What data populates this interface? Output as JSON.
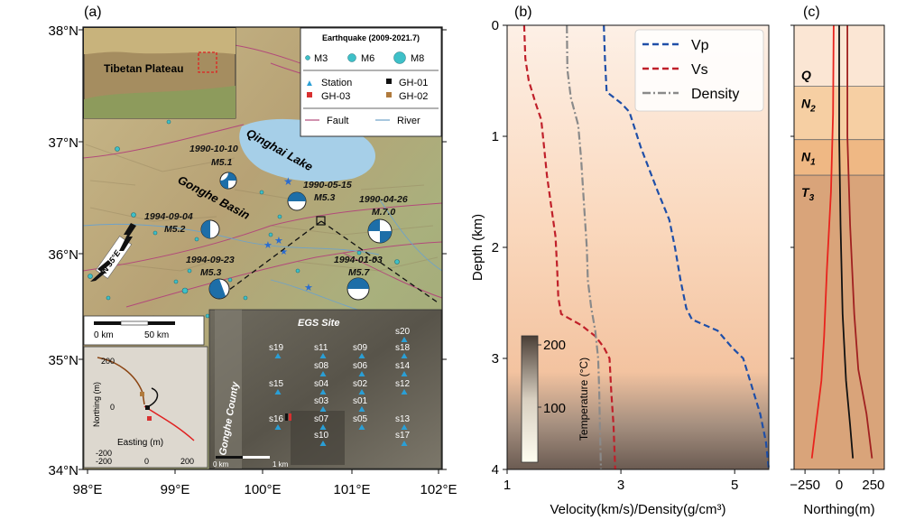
{
  "panel_a": {
    "label": "(a)",
    "lat_ticks": [
      "34°N",
      "35°N",
      "36°N",
      "37°N",
      "38°N"
    ],
    "lon_ticks": [
      "98°E",
      "99°E",
      "100°E",
      "101°E",
      "102°E"
    ],
    "inset_label": "Tibetan Plateau",
    "legend": {
      "title": "Earthquake (2009-2021.7)",
      "m3": "M3",
      "m6": "M6",
      "m8": "M8",
      "station": "Station",
      "gh01": "GH-01",
      "gh03": "GH-03",
      "gh02": "GH-02",
      "fault": "Fault",
      "river": "River"
    },
    "lake_label": "Qinghai Lake",
    "basin_label": "Gonghe Basin",
    "orientation_label": "N 35°E",
    "events": [
      {
        "date": "1990-10-10",
        "mag": "M5.1"
      },
      {
        "date": "1990-05-15",
        "mag": "M5.3"
      },
      {
        "date": "1990-04-26",
        "mag": "M.7.0"
      },
      {
        "date": "1994-09-04",
        "mag": "M5.2"
      },
      {
        "date": "1994-09-23",
        "mag": "M5.3"
      },
      {
        "date": "1994-01-03",
        "mag": "M5.7"
      }
    ],
    "scalebar": {
      "zero": "0 km",
      "end": "50 km"
    },
    "well_inset": {
      "ylabel": "Northing (m)",
      "xlabel": "Easting (m)",
      "yticks": [
        "200",
        "0",
        "-200"
      ],
      "xticks": [
        "-200",
        "0",
        "200"
      ]
    },
    "site": {
      "title": "EGS Site",
      "county": "Gonghe County",
      "scale_zero": "0 km",
      "scale_end": "1 km",
      "stations": [
        "s20",
        "s19",
        "s11",
        "s09",
        "s18",
        "s08",
        "s06",
        "s14",
        "s15",
        "s04",
        "s02",
        "s12",
        "s03",
        "s01",
        "s16",
        "s07",
        "s05",
        "s13",
        "s10",
        "s17"
      ]
    }
  },
  "panel_b_label": "(b)",
  "panel_c_label": "(c)",
  "colorbar": {
    "label": "Temperature (°C)",
    "ticks": [
      "200",
      "100"
    ]
  },
  "chart_data": [
    {
      "type": "line",
      "xlabel": "Velocity(km/s)/Density(g/cm³)",
      "ylabel": "Depth (km)",
      "xlim": [
        1,
        5.6
      ],
      "ylim": [
        0,
        4
      ],
      "y_inverted": true,
      "xticks": [
        1,
        3,
        5
      ],
      "yticks": [
        0,
        1,
        2,
        3,
        4
      ],
      "legend_position": "top-right",
      "series": [
        {
          "name": "Vp",
          "color": "#1f4fa8",
          "dash": "dashed",
          "points": [
            [
              2.7,
              0
            ],
            [
              2.72,
              0.3
            ],
            [
              2.75,
              0.6
            ],
            [
              3.0,
              0.7
            ],
            [
              3.15,
              0.78
            ],
            [
              3.35,
              1.1
            ],
            [
              3.5,
              1.3
            ],
            [
              3.65,
              1.5
            ],
            [
              3.85,
              1.75
            ],
            [
              3.95,
              2.0
            ],
            [
              4.05,
              2.3
            ],
            [
              4.15,
              2.55
            ],
            [
              4.25,
              2.65
            ],
            [
              4.7,
              2.75
            ],
            [
              4.95,
              2.9
            ],
            [
              5.15,
              3.0
            ],
            [
              5.3,
              3.25
            ],
            [
              5.45,
              3.5
            ],
            [
              5.55,
              3.75
            ],
            [
              5.6,
              4.0
            ]
          ]
        },
        {
          "name": "Vs",
          "color": "#c0202a",
          "dash": "dashed",
          "points": [
            [
              1.3,
              0
            ],
            [
              1.32,
              0.3
            ],
            [
              1.38,
              0.5
            ],
            [
              1.5,
              0.7
            ],
            [
              1.6,
              0.85
            ],
            [
              1.65,
              1.1
            ],
            [
              1.7,
              1.35
            ],
            [
              1.78,
              1.65
            ],
            [
              1.85,
              1.9
            ],
            [
              1.88,
              2.2
            ],
            [
              1.9,
              2.45
            ],
            [
              1.95,
              2.6
            ],
            [
              2.3,
              2.7
            ],
            [
              2.55,
              2.8
            ],
            [
              2.7,
              2.9
            ],
            [
              2.8,
              3.0
            ],
            [
              2.83,
              3.3
            ],
            [
              2.87,
              3.6
            ],
            [
              2.9,
              4.0
            ]
          ]
        },
        {
          "name": "Density",
          "color": "#8a8a8a",
          "dash": "dashdot",
          "points": [
            [
              2.05,
              0
            ],
            [
              2.06,
              0.4
            ],
            [
              2.12,
              0.65
            ],
            [
              2.25,
              0.9
            ],
            [
              2.3,
              1.2
            ],
            [
              2.35,
              1.6
            ],
            [
              2.4,
              2.0
            ],
            [
              2.42,
              2.3
            ],
            [
              2.48,
              2.55
            ],
            [
              2.55,
              2.75
            ],
            [
              2.6,
              3.0
            ],
            [
              2.62,
              3.3
            ],
            [
              2.63,
              3.6
            ],
            [
              2.65,
              4.0
            ]
          ]
        }
      ]
    },
    {
      "type": "line",
      "xlabel": "Northing(m)",
      "xlim": [
        -330,
        330
      ],
      "ylim": [
        0,
        4
      ],
      "y_inverted": true,
      "xticks": [
        -250,
        0,
        250
      ],
      "layers": [
        {
          "name": "Q",
          "top": 0,
          "bottom": 0.55,
          "color": "#fbe6d4"
        },
        {
          "name": "N2",
          "top": 0.55,
          "bottom": 1.03,
          "color": "#f6cfa3"
        },
        {
          "name": "N1",
          "top": 1.03,
          "bottom": 1.35,
          "color": "#efb884"
        },
        {
          "name": "T3",
          "top": 1.35,
          "bottom": 4.0,
          "color": "#d9a47a"
        }
      ],
      "series": [
        {
          "color": "#e8231d",
          "points": [
            [
              -40,
              0
            ],
            [
              -45,
              0.8
            ],
            [
              -60,
              1.5
            ],
            [
              -90,
              2.2
            ],
            [
              -110,
              2.8
            ],
            [
              -130,
              3.2
            ],
            [
              -170,
              3.6
            ],
            [
              -200,
              3.9
            ]
          ]
        },
        {
          "color": "#111111",
          "points": [
            [
              0,
              0
            ],
            [
              0,
              1.0
            ],
            [
              10,
              1.8
            ],
            [
              25,
              2.6
            ],
            [
              50,
              3.2
            ],
            [
              80,
              3.6
            ],
            [
              100,
              3.9
            ]
          ]
        },
        {
          "color": "#a02020",
          "points": [
            [
              60,
              0
            ],
            [
              60,
              1.0
            ],
            [
              80,
              1.8
            ],
            [
              110,
              2.6
            ],
            [
              140,
              3.1
            ],
            [
              200,
              3.5
            ],
            [
              240,
              3.9
            ]
          ]
        }
      ]
    }
  ]
}
